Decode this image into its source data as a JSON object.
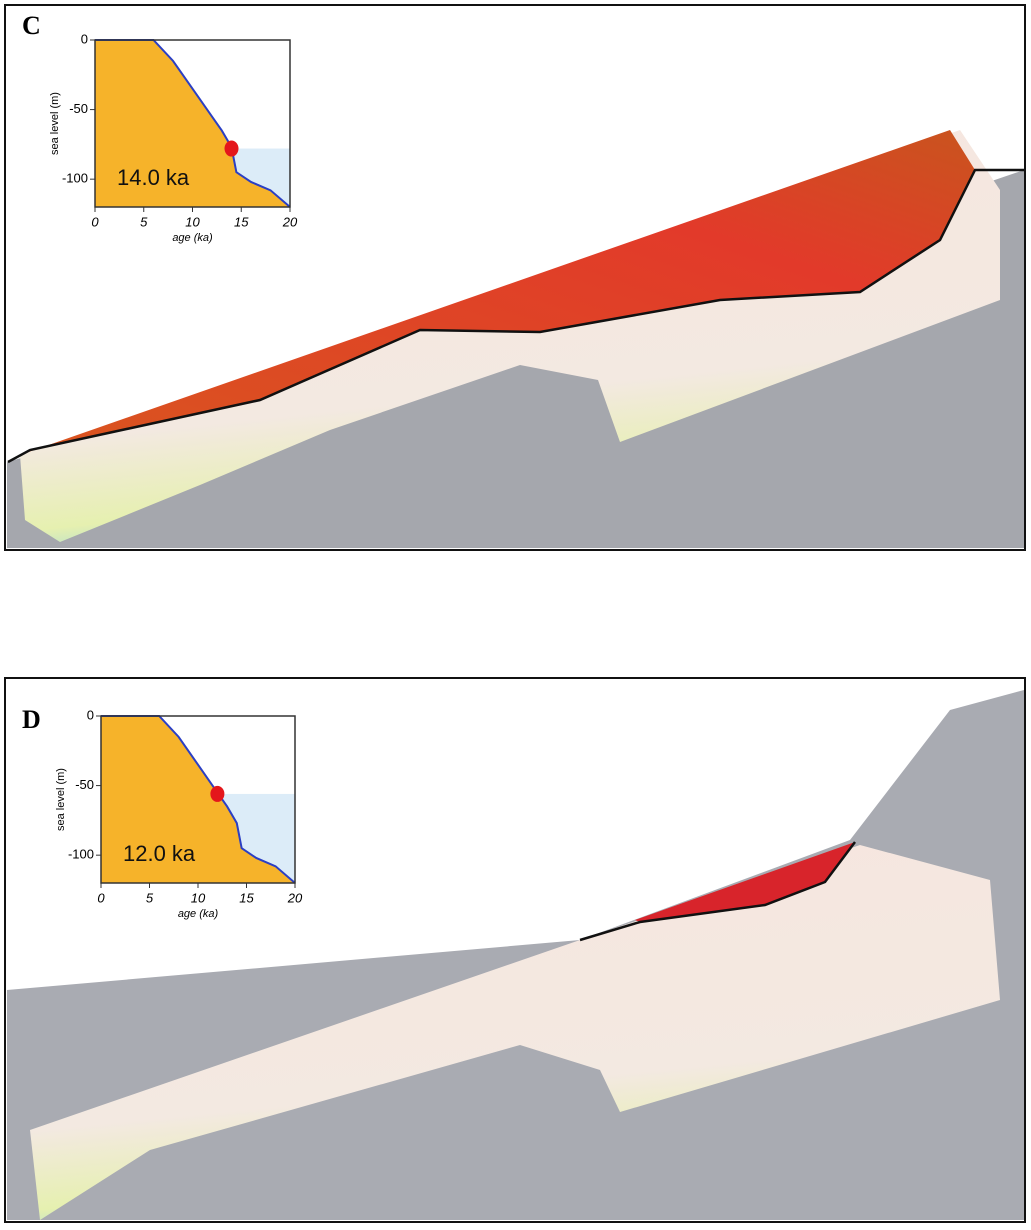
{
  "chart_data": [
    {
      "type": "line",
      "panel": "C",
      "ylabel": "sea level (m)",
      "xlabel": "age (ka)",
      "xlim": [
        0,
        20
      ],
      "ylim": [
        -120,
        0
      ],
      "xticks": [
        0,
        5,
        10,
        15,
        20
      ],
      "yticks": [
        0,
        -50,
        -100
      ],
      "x": [
        0,
        6,
        8,
        10,
        12,
        13,
        14,
        14.5,
        16,
        18,
        20
      ],
      "series": [
        {
          "color": "#2b3fc4",
          "values": [
            0,
            0,
            -15,
            -35,
            -55,
            -65,
            -77,
            -95,
            -102,
            -108,
            -120
          ]
        }
      ],
      "highlight": {
        "x": 14,
        "y": -78,
        "label": "14.0 ka",
        "color": "#e4161b"
      }
    },
    {
      "type": "line",
      "panel": "D",
      "ylabel": "sea level (m)",
      "xlabel": "age (ka)",
      "xlim": [
        0,
        20
      ],
      "ylim": [
        -120,
        0
      ],
      "xticks": [
        0,
        5,
        10,
        15,
        20
      ],
      "yticks": [
        0,
        -50,
        -100
      ],
      "x": [
        0,
        6,
        8,
        10,
        12,
        13,
        14,
        14.5,
        16,
        18,
        20
      ],
      "series": [
        {
          "color": "#2b3fc4",
          "values": [
            0,
            0,
            -15,
            -35,
            -55,
            -65,
            -77,
            -95,
            -102,
            -108,
            -120
          ]
        }
      ],
      "highlight": {
        "x": 12,
        "y": -56,
        "label": "12.0 ka",
        "color": "#e4161b"
      }
    }
  ]
}
